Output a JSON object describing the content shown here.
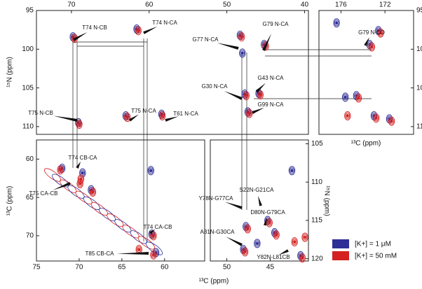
{
  "chart_data": [
    {
      "type": "contour",
      "ylabel": "¹⁵N (ppm)",
      "xlim": [
        74.5,
        39.5
      ],
      "ylim": [
        95,
        111
      ],
      "xticks": [
        70,
        60,
        50,
        40
      ],
      "yticks": [
        95,
        100,
        105,
        110
      ],
      "series": [
        {
          "name": "[K+] = 1 μM",
          "color": "#2e2e96",
          "x": [
            69.8,
            61.6,
            69.1,
            63.0,
            58.4,
            48.3,
            45.2,
            47.7,
            45.9,
            47.3,
            48.0
          ],
          "y": [
            98.4,
            97.4,
            109.5,
            108.6,
            108.4,
            98.2,
            99.4,
            105.8,
            105.7,
            108.1,
            100.5
          ]
        },
        {
          "name": "[K+] = 50 mM",
          "color": "#d42020",
          "x": [
            69.6,
            61.4,
            69.0,
            62.8,
            58.3,
            48.1,
            45.0,
            47.5,
            45.7,
            47.1
          ],
          "y": [
            98.6,
            97.6,
            109.7,
            108.8,
            108.6,
            98.4,
            99.6,
            106.0,
            105.9,
            108.3
          ]
        }
      ],
      "annotations": [
        "T74 N-CB",
        "T74 N-CA",
        "G77 N-CA",
        "G79 N-CA",
        "G30 N-CA",
        "G43 N-CA",
        "G99 N-CA",
        "T75 N-CB",
        "T75 N-CA",
        "T61 N-CA"
      ]
    },
    {
      "type": "contour",
      "xlabel": "¹³C (ppm)",
      "xlim": [
        178,
        169.4
      ],
      "ylim": [
        95,
        111
      ],
      "xticks": [
        176,
        172
      ],
      "yticks": [
        95,
        100,
        105,
        110
      ],
      "series": [
        {
          "name": "[K+] = 1 μM",
          "color": "#2e2e96",
          "x": [
            173.4,
            172.6,
            174.6,
            173.0,
            171.6,
            175.6,
            176.4
          ],
          "y": [
            99.4,
            97.6,
            106.0,
            108.6,
            109.0,
            106.2,
            96.6
          ]
        },
        {
          "name": "[K+] = 50 mM",
          "color": "#d42020",
          "x": [
            173.2,
            172.4,
            174.4,
            172.8,
            171.4,
            175.4
          ],
          "y": [
            99.7,
            97.9,
            106.3,
            108.9,
            109.3,
            108.6
          ]
        }
      ],
      "annotations": [
        "G79 N-CO"
      ]
    },
    {
      "type": "contour",
      "xlabel": "¹³C (ppm)",
      "ylabel": "¹³C (ppm)",
      "xlim": [
        75,
        55.3
      ],
      "ylim": [
        57.5,
        73.3
      ],
      "xticks": [
        75,
        70,
        65,
        60
      ],
      "yticks": [
        60,
        65,
        70
      ],
      "series": [
        {
          "name": "[K+] = 1 μM",
          "color": "#2e2e96",
          "x": [
            69.6,
            61.5,
            61.0,
            61.6,
            72.0,
            68.6
          ],
          "y": [
            61.8,
            69.8,
            72.2,
            61.5,
            61.2,
            64.0
          ]
        },
        {
          "name": "[K+] = 50 mM",
          "color": "#d42020",
          "x": [
            69.8,
            61.3,
            61.3,
            69.9,
            72.2,
            68.4,
            63.0
          ],
          "y": [
            62.6,
            70.0,
            72.5,
            63.2,
            61.4,
            64.3,
            71.8
          ]
        }
      ],
      "annotations": [
        "T74 CB-CA",
        "T75 CA-CB",
        "T74 CA-CB",
        "T85 CB-CA"
      ]
    },
    {
      "type": "contour",
      "ylabel": "¹⁵N (ppm)",
      "xlim": [
        51.9,
        40.6
      ],
      "ylim": [
        104.5,
        120.3
      ],
      "xticks": [
        50,
        45
      ],
      "yticks": [
        105,
        110,
        115,
        120
      ],
      "series": [
        {
          "name": "[K+] = 1 μM",
          "color": "#2e2e96",
          "x": [
            47.8,
            45.3,
            44.5,
            48.1,
            41.5,
            46.5,
            42.5
          ],
          "y": [
            115.8,
            115.0,
            116.6,
            118.8,
            119.6,
            118.0,
            108.5
          ]
        },
        {
          "name": "[K+] = 50 mM",
          "color": "#d42020",
          "x": [
            47.6,
            45.1,
            44.3,
            47.9,
            41.3,
            42.2,
            41.0
          ],
          "y": [
            116.1,
            115.3,
            116.9,
            119.1,
            119.9,
            117.8,
            117.2
          ]
        }
      ],
      "annotations": [
        "Y78N-G77CA",
        "S22N-G21CA",
        "D80N-G79CA",
        "A31N-G30CA",
        "Y82N-L81CB"
      ]
    }
  ]
}
